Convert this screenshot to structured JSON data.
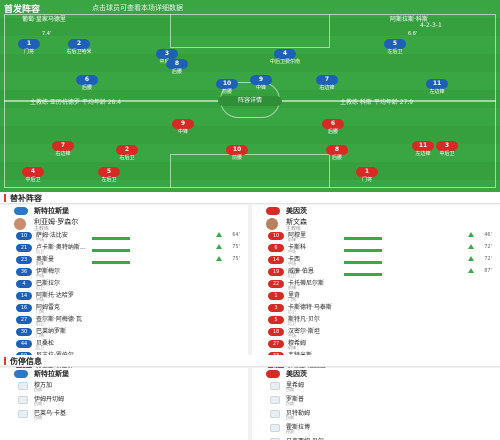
{
  "pitch": {
    "title": "首发阵容",
    "subtitle": "点击球员可查看本场详细数据",
    "home_team_label": "葡萄·皇家马德里",
    "home_formation": "4-2-3-1",
    "away_team_label": "阿斯拉斯·科斯",
    "away_formation": "4-2-3-1",
    "center_label": "阵容详情",
    "home_coach_line": "主教练 亚历杭德罗 平均年龄 28.4",
    "away_coach_line": "主教练 科斯 平均年龄 27.9",
    "blue_players": [
      {
        "num": "1",
        "name": "门将",
        "min": "7.4'"
      },
      {
        "num": "2",
        "name": "右后卫哈米",
        "min": ""
      },
      {
        "num": "3",
        "name": "中后卫",
        "min": ""
      },
      {
        "num": "4",
        "name": "中后卫费尔南",
        "min": ""
      },
      {
        "num": "5",
        "name": "左后卫",
        "min": "6.6'"
      },
      {
        "num": "6",
        "name": "后腰",
        "min": ""
      },
      {
        "num": "8",
        "name": "后腰",
        "min": ""
      },
      {
        "num": "10",
        "name": "前腰",
        "min": ""
      },
      {
        "num": "7",
        "name": "右边锋",
        "min": ""
      },
      {
        "num": "11",
        "name": "左边锋",
        "min": ""
      },
      {
        "num": "9",
        "name": "中锋",
        "min": ""
      }
    ],
    "red_players": [
      {
        "num": "9",
        "name": "中锋",
        "min": ""
      },
      {
        "num": "10",
        "name": "前腰",
        "min": ""
      },
      {
        "num": "7",
        "name": "右边锋",
        "min": ""
      },
      {
        "num": "11",
        "name": "左边锋",
        "min": ""
      },
      {
        "num": "6",
        "name": "后腰",
        "min": ""
      },
      {
        "num": "8",
        "name": "后腰",
        "min": ""
      },
      {
        "num": "2",
        "name": "右后卫",
        "min": ""
      },
      {
        "num": "3",
        "name": "中后卫",
        "min": ""
      },
      {
        "num": "4",
        "name": "中后卫",
        "min": ""
      },
      {
        "num": "5",
        "name": "左后卫",
        "min": ""
      },
      {
        "num": "1",
        "name": "门将",
        "min": ""
      }
    ]
  },
  "subs": {
    "title": "替补阵容",
    "left_team": "斯特拉斯堡",
    "right_team": "美因茨",
    "left_coach": {
      "name": "利亚姆·罗森尔",
      "role": "主教练"
    },
    "right_coach": {
      "name": "斯文森",
      "role": "主教练"
    },
    "left_rows": [
      {
        "num": "10",
        "name": "萨姆·法比安",
        "pos": "中场",
        "min": "64'"
      },
      {
        "num": "21",
        "name": "卢卡斯·奥特纳斯…",
        "pos": "后卫",
        "min": "75'"
      },
      {
        "num": "23",
        "name": "奥斯曼",
        "pos": "前锋",
        "min": "75'"
      },
      {
        "num": "36",
        "name": "伊斯梅尔",
        "pos": "中场",
        "min": ""
      },
      {
        "num": "4",
        "name": "巴斯拉尔",
        "pos": "后卫",
        "min": ""
      },
      {
        "num": "14",
        "name": "阿斯托·达哈罗",
        "pos": "中场",
        "min": ""
      },
      {
        "num": "16",
        "name": "阿姆雷克",
        "pos": "门将",
        "min": ""
      },
      {
        "num": "27",
        "name": "查尔斯·阿梅德·瓦",
        "pos": "后卫",
        "min": ""
      },
      {
        "num": "30",
        "name": "巴莱纳罗斯",
        "pos": "门将",
        "min": ""
      },
      {
        "num": "44",
        "name": "贝桑松",
        "pos": "后卫",
        "min": ""
      },
      {
        "num": "50",
        "name": "尼古拉·罗伯尔…",
        "pos": "中场",
        "min": ""
      },
      {
        "num": "77",
        "name": "拉莫斯·费斯托",
        "pos": "前锋",
        "min": ""
      }
    ],
    "right_rows": [
      {
        "num": "10",
        "name": "阿穆里",
        "pos": "前锋",
        "min": "46'"
      },
      {
        "num": "6",
        "name": "卡斯科",
        "pos": "中场",
        "min": "72'"
      },
      {
        "num": "14",
        "name": "卡西",
        "pos": "中场",
        "min": "72'"
      },
      {
        "num": "19",
        "name": "威廉·伯恩",
        "pos": "后卫",
        "min": "87'"
      },
      {
        "num": "22",
        "name": "卡托蒂尼尔斯",
        "pos": "前锋",
        "min": ""
      },
      {
        "num": "1",
        "name": "里奇",
        "pos": "门将",
        "min": ""
      },
      {
        "num": "3",
        "name": "卡斯德特·马泰斯",
        "pos": "后卫",
        "min": ""
      },
      {
        "num": "5",
        "name": "斯特凡·贝尔",
        "pos": "后卫",
        "min": ""
      },
      {
        "num": "18",
        "name": "汉密尔·斯坦",
        "pos": "中场",
        "min": ""
      },
      {
        "num": "27",
        "name": "穆希姆",
        "pos": "前锋",
        "min": ""
      },
      {
        "num": "33",
        "name": "韦特米斯",
        "pos": "门将",
        "min": ""
      },
      {
        "num": "41",
        "name": "托马斯·施泰格",
        "pos": "后卫",
        "min": ""
      }
    ]
  },
  "injuries": {
    "title": "伤停信息",
    "left_team": "斯特拉斯堡",
    "right_team": "美因茨",
    "left_rows": [
      {
        "name": "穆万加",
        "status": "伤病"
      },
      {
        "name": "伊姆丹切姆",
        "status": "伤病"
      },
      {
        "name": "巴莱乌·卡基",
        "status": "伤病"
      }
    ],
    "right_rows": [
      {
        "name": "里希姆",
        "status": "伤病"
      },
      {
        "name": "罗斯普",
        "status": "伤病"
      },
      {
        "name": "贝特勒姆",
        "status": "伤病"
      },
      {
        "name": "霍斯拉博",
        "status": "停赛"
      },
      {
        "name": "马克西姆·贝尔",
        "status": "伤病"
      }
    ]
  },
  "colors": {
    "home": "#1e5fb8",
    "away": "#d82a24",
    "pitch": "#3aa543",
    "accent": "#e23b2e"
  }
}
